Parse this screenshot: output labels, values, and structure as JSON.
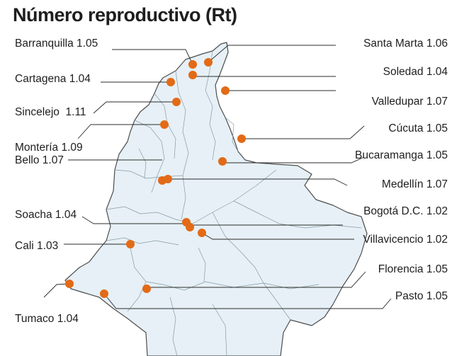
{
  "title": "Número reproductivo (Rt)",
  "colors": {
    "map_fill": "#e6f0f6",
    "map_border": "#4d4d4d",
    "internal_border": "#8a9aa6",
    "marker": "#e36a16",
    "leader_line": "#2b2b2b",
    "text": "#1e1e1e"
  },
  "cities": [
    {
      "id": "barranquilla",
      "name": "Barranquilla",
      "rt": "1.05",
      "side": "left"
    },
    {
      "id": "santa-marta",
      "name": "Santa Marta",
      "rt": "1.06",
      "side": "right"
    },
    {
      "id": "cartagena",
      "name": "Cartagena",
      "rt": "1.04",
      "side": "left"
    },
    {
      "id": "soledad",
      "name": "Soledad",
      "rt": "1.04",
      "side": "right"
    },
    {
      "id": "valledupar",
      "name": "Valledupar",
      "rt": "1.07",
      "side": "right"
    },
    {
      "id": "sincelejo",
      "name": "Sincelejo ",
      "rt": "1.11",
      "side": "left"
    },
    {
      "id": "monteria",
      "name": "Montería",
      "rt": "1.09",
      "side": "left"
    },
    {
      "id": "cucuta",
      "name": "Cúcuta",
      "rt": "1.05",
      "side": "right"
    },
    {
      "id": "bucaramanga",
      "name": "Bucaramanga",
      "rt": "1.05",
      "side": "right"
    },
    {
      "id": "bello",
      "name": "Bello",
      "rt": "1.07",
      "side": "left"
    },
    {
      "id": "medellin",
      "name": "Medellín",
      "rt": "1.07",
      "side": "right"
    },
    {
      "id": "soacha",
      "name": "Soacha",
      "rt": "1.04",
      "side": "left"
    },
    {
      "id": "bogota",
      "name": "Bogotá D.C.",
      "rt": "1.02",
      "side": "right"
    },
    {
      "id": "villavicencio",
      "name": "Villavicencio",
      "rt": "1.02",
      "side": "right"
    },
    {
      "id": "cali",
      "name": "Cali",
      "rt": "1.03",
      "side": "left"
    },
    {
      "id": "florencia",
      "name": "Florencia",
      "rt": "1.05",
      "side": "right"
    },
    {
      "id": "pasto",
      "name": "Pasto",
      "rt": "1.05",
      "side": "right"
    },
    {
      "id": "tumaco",
      "name": "Tumaco",
      "rt": "1.04",
      "side": "left"
    }
  ]
}
